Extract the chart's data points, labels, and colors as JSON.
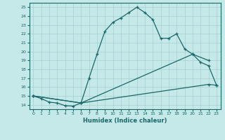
{
  "xlabel": "Humidex (Indice chaleur)",
  "ylabel": "",
  "bg_color": "#c5e8e8",
  "grid_color": "#a8d0d0",
  "line_color": "#1a6868",
  "xlim": [
    -0.5,
    23.5
  ],
  "ylim": [
    13.5,
    25.5
  ],
  "xticks": [
    0,
    1,
    2,
    3,
    4,
    5,
    6,
    7,
    8,
    9,
    10,
    11,
    12,
    13,
    14,
    15,
    16,
    17,
    18,
    19,
    20,
    21,
    22,
    23
  ],
  "yticks": [
    14,
    15,
    16,
    17,
    18,
    19,
    20,
    21,
    22,
    23,
    24,
    25
  ],
  "line1_x": [
    0,
    1,
    2,
    3,
    4,
    5,
    6,
    7,
    8,
    9,
    10,
    11,
    12,
    13,
    14,
    15,
    16,
    17,
    18,
    19,
    20,
    21,
    22,
    23
  ],
  "line1_y": [
    15.0,
    14.7,
    14.3,
    14.2,
    13.9,
    13.85,
    14.2,
    17.0,
    19.7,
    22.3,
    23.3,
    23.8,
    24.4,
    25.0,
    24.4,
    23.6,
    21.5,
    21.5,
    22.0,
    20.3,
    19.7,
    18.8,
    18.4,
    16.2
  ],
  "line2_x": [
    0,
    6,
    20,
    22
  ],
  "line2_y": [
    15.0,
    14.2,
    19.7,
    19.0
  ],
  "line3_x": [
    0,
    6,
    22,
    23
  ],
  "line3_y": [
    15.0,
    14.2,
    16.3,
    16.2
  ]
}
